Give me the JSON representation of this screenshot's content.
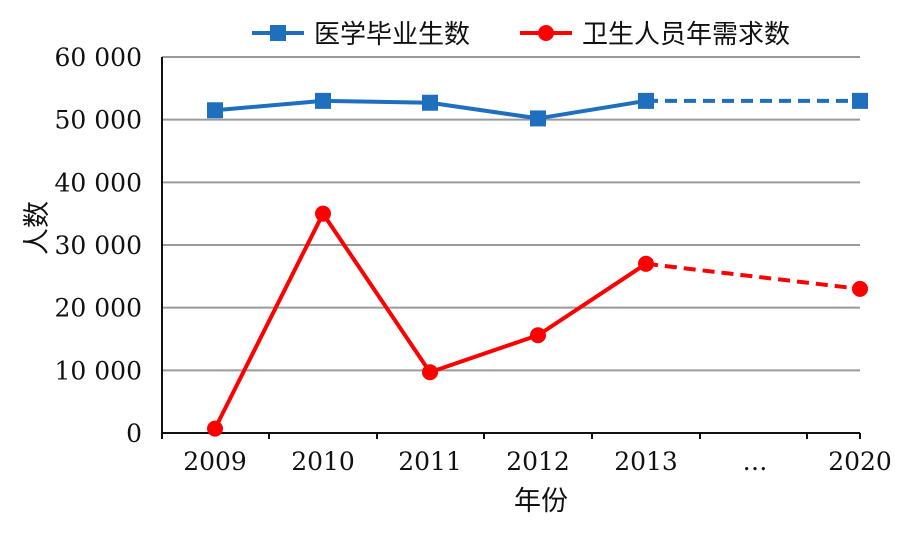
{
  "chart_data": {
    "type": "line",
    "title": "",
    "xlabel": "年份",
    "ylabel": "人数",
    "categories": [
      "2009",
      "2010",
      "2011",
      "2012",
      "2013",
      "…",
      "2020"
    ],
    "y_ticks": [
      "0",
      "10 000",
      "20 000",
      "30 000",
      "40 000",
      "50 000",
      "60 000"
    ],
    "ylim": [
      0,
      60000
    ],
    "grid": true,
    "legend_position": "top",
    "series": [
      {
        "name": "医学毕业生数",
        "color": "#1f6fbf",
        "marker": "square",
        "values": [
          51500,
          53000,
          52700,
          50200,
          53000,
          null,
          53000
        ],
        "projected_from_index": 4
      },
      {
        "name": "卫生人员年需求数",
        "color": "#ff0000",
        "marker": "circle",
        "values": [
          700,
          35000,
          9700,
          15600,
          27000,
          null,
          23000
        ],
        "projected_from_index": 4
      }
    ]
  }
}
